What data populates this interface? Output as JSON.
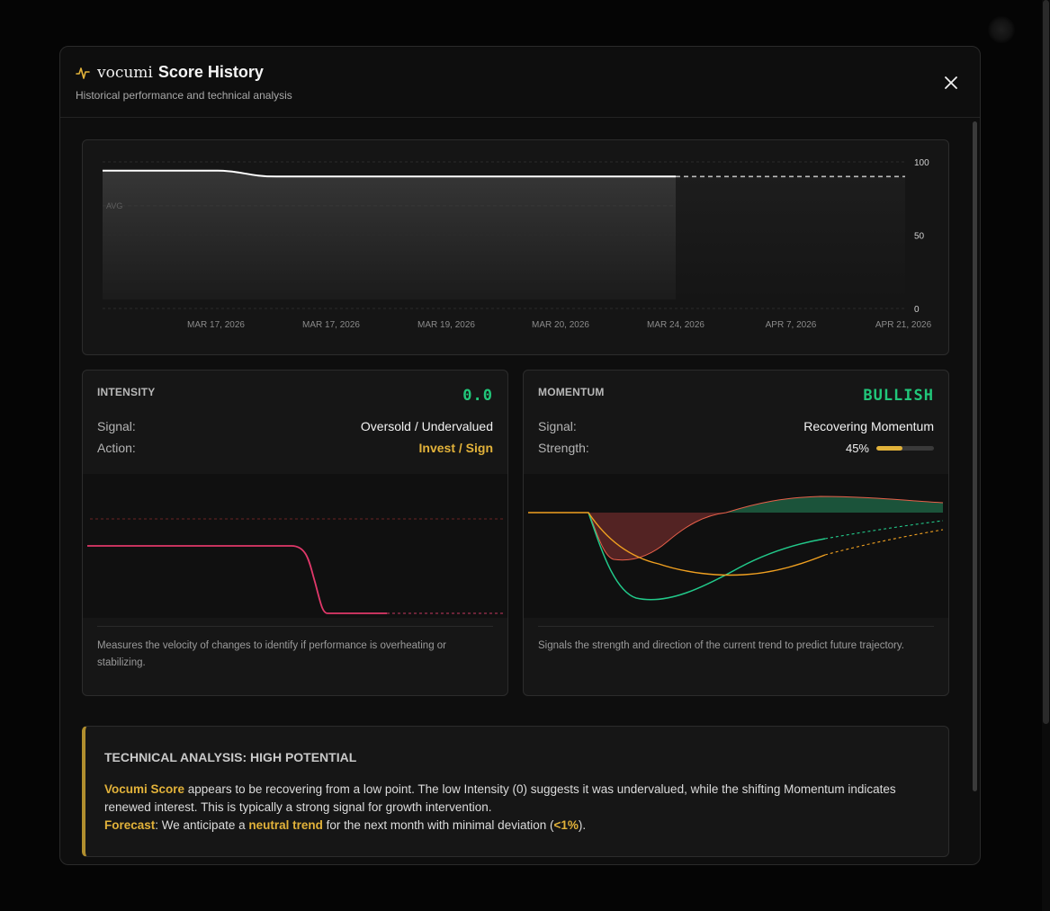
{
  "modal": {
    "brand": "vocumi",
    "title": "Score History",
    "subtitle": "Historical performance and technical analysis",
    "close_icon": "close-icon",
    "title_icon": "pulse-icon"
  },
  "score_chart": {
    "y_ticks": [
      "100",
      "50",
      "0"
    ],
    "avg_label": "AVG",
    "x_labels": [
      "MAR 17, 2026",
      "MAR 17, 2026",
      "MAR 19, 2026",
      "MAR 20, 2026",
      "MAR 24, 2026",
      "APR 7, 2026",
      "APR 21, 2026"
    ]
  },
  "chart_data": {
    "type": "line",
    "x": [
      "MAR 17, 2026",
      "MAR 17, 2026",
      "MAR 19, 2026",
      "MAR 20, 2026",
      "MAR 24, 2026",
      "APR 7, 2026",
      "APR 21, 2026"
    ],
    "ylim": [
      0,
      100
    ],
    "series": [
      {
        "values": [
          94,
          90,
          90,
          90,
          90,
          null,
          null
        ]
      },
      {
        "values": [
          null,
          null,
          null,
          null,
          90,
          90,
          90
        ]
      }
    ],
    "avg": 70,
    "grid": true,
    "colors": {
      "actual": "#ffffff",
      "projection": "#bbbbbb",
      "avg": "#6a6a6a"
    }
  },
  "intensity": {
    "label": "INTENSITY",
    "value": "0.0",
    "signal_key": "Signal:",
    "signal_value": "Oversold / Undervalued",
    "action_key": "Action:",
    "action_value": "Invest / Sign",
    "description": "Measures the velocity of changes to identify if performance is overheating or stabilizing.",
    "line_color": "#e0386a"
  },
  "momentum": {
    "label": "MOMENTUM",
    "value": "BULLISH",
    "signal_key": "Signal:",
    "signal_value": "Recovering Momentum",
    "strength_key": "Strength:",
    "strength_value": "45%",
    "strength_fraction": 0.45,
    "description": "Signals the strength and direction of the current trend to predict future trajectory.",
    "fast_color": "#22c98a",
    "slow_color": "#f0a020"
  },
  "analysis": {
    "title": "TECHNICAL ANALYSIS: HIGH POTENTIAL",
    "subject": "Vocumi Score",
    "text1": " appears to be recovering from a low point. The low Intensity (0) suggests it was undervalued, while the shifting Momentum indicates renewed interest. This is typically a strong signal for growth intervention.",
    "forecast_label": "Forecast",
    "text2": ": We anticipate a ",
    "trend": "neutral trend",
    "text3": " for the next month with minimal deviation (",
    "deviation": "<1%",
    "text4": ")."
  },
  "colors": {
    "accent": "#e2b23a",
    "positive": "#21c77a",
    "panel": "#161616",
    "background": "#050505"
  }
}
